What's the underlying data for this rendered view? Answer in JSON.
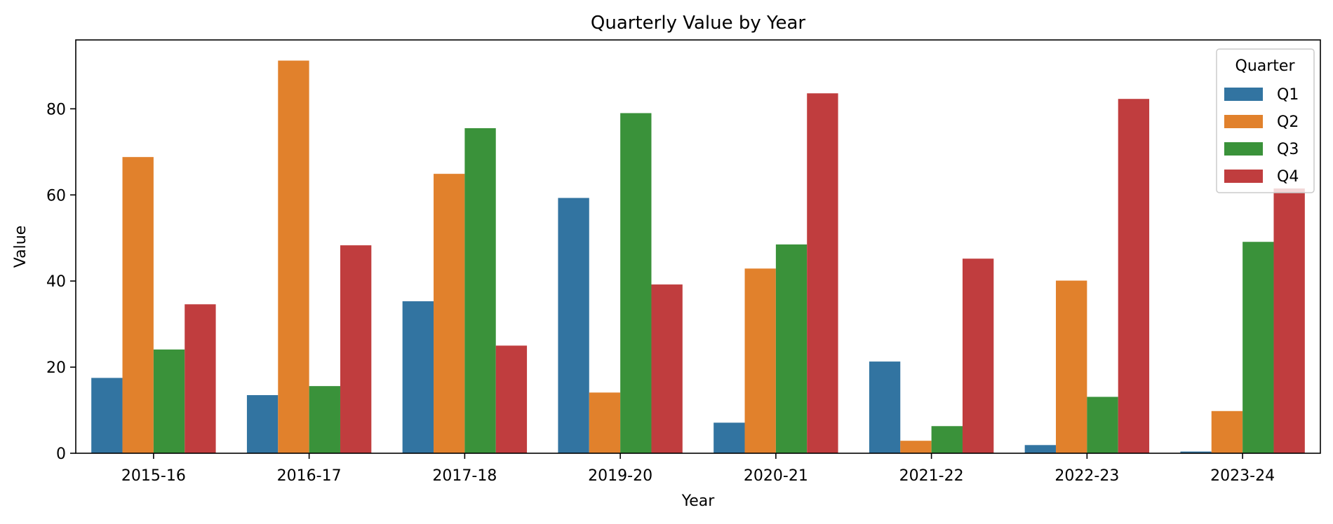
{
  "chart_data": {
    "type": "bar",
    "title": "Quarterly Value by Year",
    "xlabel": "Year",
    "ylabel": "Value",
    "categories": [
      "2015-16",
      "2016-17",
      "2017-18",
      "2019-20",
      "2020-21",
      "2021-22",
      "2022-23",
      "2023-24"
    ],
    "ylim": [
      0,
      96
    ],
    "yticks": [
      0,
      20,
      40,
      60,
      80
    ],
    "grid": false,
    "legend": {
      "title": "Quarter",
      "placement": "top-right"
    },
    "series": [
      {
        "name": "Q1",
        "color": "#3274a1",
        "values": [
          17.5,
          13.5,
          35.3,
          59.3,
          7.1,
          21.3,
          1.9,
          0.4
        ]
      },
      {
        "name": "Q2",
        "color": "#e1812c",
        "values": [
          68.8,
          91.2,
          64.9,
          14.1,
          42.9,
          2.9,
          40.1,
          9.8
        ]
      },
      {
        "name": "Q3",
        "color": "#3a923a",
        "values": [
          24.1,
          15.6,
          75.5,
          79.0,
          48.5,
          6.3,
          13.1,
          49.1
        ]
      },
      {
        "name": "Q4",
        "color": "#c03d3e",
        "values": [
          34.6,
          48.3,
          25.0,
          39.2,
          83.6,
          45.2,
          82.3,
          61.5
        ]
      }
    ]
  }
}
